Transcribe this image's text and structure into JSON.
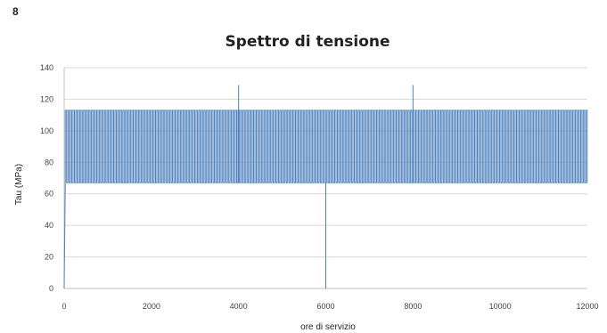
{
  "panel_label": "8",
  "chart_data": {
    "type": "line",
    "title": "Spettro di tensione",
    "xlabel": "ore di servizio",
    "ylabel": "Tau (MPa)",
    "xlim": [
      0,
      12000
    ],
    "ylim": [
      0,
      140
    ],
    "x_ticks": [
      0,
      2000,
      4000,
      6000,
      8000,
      10000,
      12000
    ],
    "y_ticks": [
      0,
      20,
      40,
      60,
      80,
      100,
      120,
      140
    ],
    "grid": true,
    "color": "#4f81bd",
    "series": [
      {
        "pattern": "cyclic",
        "base": 67,
        "peak": 113,
        "cycle_period_hours": 60,
        "start_ramp": [
          [
            0,
            0
          ],
          [
            25,
            67
          ]
        ],
        "spikes": [
          {
            "x": 4000,
            "y": 129
          },
          {
            "x": 8000,
            "y": 129
          }
        ],
        "dips": [
          {
            "x": 6000,
            "y": 0
          }
        ],
        "x_end": 12000
      }
    ]
  }
}
